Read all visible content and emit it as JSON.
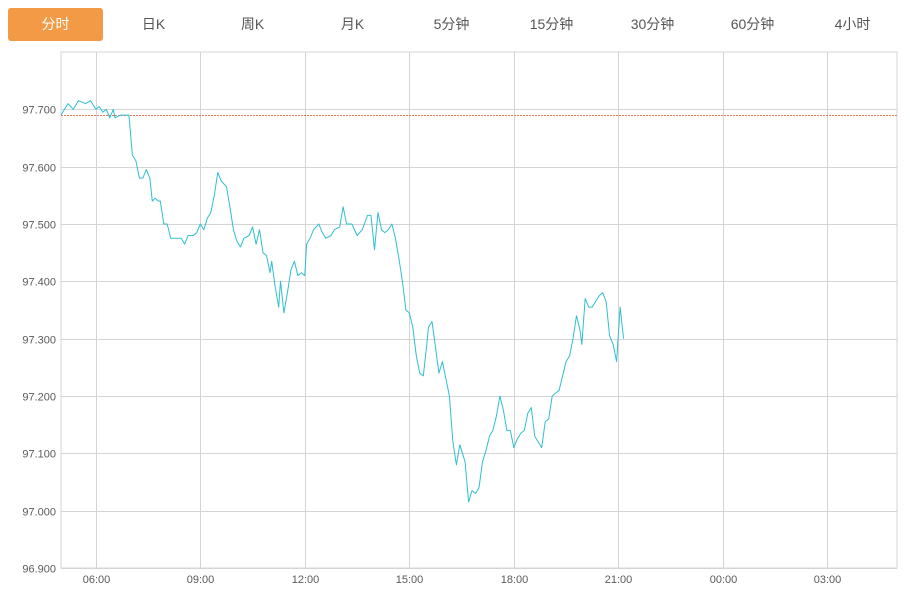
{
  "tabs": [
    {
      "label": "分时",
      "active": true
    },
    {
      "label": "日K",
      "active": false
    },
    {
      "label": "周K",
      "active": false
    },
    {
      "label": "月K",
      "active": false
    },
    {
      "label": "5分钟",
      "active": false
    },
    {
      "label": "15分钟",
      "active": false
    },
    {
      "label": "30分钟",
      "active": false
    },
    {
      "label": "60分钟",
      "active": false
    },
    {
      "label": "4小时",
      "active": false
    }
  ],
  "colors": {
    "accent": "#f39a47",
    "line": "#2fbfd0",
    "reference_line": "#e07a5f",
    "reference_label": "#d0021b",
    "grid": "#d4d4d4"
  },
  "chart_data": {
    "type": "line",
    "title": "",
    "xlabel": "",
    "ylabel": "",
    "ylim": [
      96.9,
      97.8
    ],
    "y_ticks": [
      "96.900",
      "97.000",
      "97.100",
      "97.200",
      "97.300",
      "97.400",
      "97.500",
      "97.600",
      "97.700"
    ],
    "x_range_hours": [
      5.0,
      29.0
    ],
    "x_ticks": [
      {
        "label": "06:00",
        "h": 6
      },
      {
        "label": "09:00",
        "h": 9
      },
      {
        "label": "12:00",
        "h": 12
      },
      {
        "label": "15:00",
        "h": 15
      },
      {
        "label": "18:00",
        "h": 18
      },
      {
        "label": "21:00",
        "h": 21
      },
      {
        "label": "00:00",
        "h": 24
      },
      {
        "label": "03:00",
        "h": 27
      }
    ],
    "reference_value": 97.69,
    "highlighted_tick": "97.700",
    "grid": true,
    "series": [
      {
        "points": [
          [
            5.0,
            97.69
          ],
          [
            5.1,
            97.7
          ],
          [
            5.2,
            97.71
          ],
          [
            5.35,
            97.7
          ],
          [
            5.5,
            97.715
          ],
          [
            5.7,
            97.71
          ],
          [
            5.85,
            97.715
          ],
          [
            6.0,
            97.7
          ],
          [
            6.1,
            97.705
          ],
          [
            6.2,
            97.695
          ],
          [
            6.3,
            97.7
          ],
          [
            6.4,
            97.685
          ],
          [
            6.5,
            97.7
          ],
          [
            6.55,
            97.685
          ],
          [
            6.7,
            97.69
          ],
          [
            6.85,
            97.69
          ],
          [
            6.95,
            97.69
          ],
          [
            7.05,
            97.62
          ],
          [
            7.15,
            97.61
          ],
          [
            7.25,
            97.58
          ],
          [
            7.35,
            97.58
          ],
          [
            7.45,
            97.595
          ],
          [
            7.55,
            97.58
          ],
          [
            7.62,
            97.54
          ],
          [
            7.7,
            97.545
          ],
          [
            7.8,
            97.54
          ],
          [
            7.85,
            97.54
          ],
          [
            7.95,
            97.5
          ],
          [
            8.05,
            97.5
          ],
          [
            8.15,
            97.475
          ],
          [
            8.3,
            97.475
          ],
          [
            8.45,
            97.475
          ],
          [
            8.55,
            97.465
          ],
          [
            8.65,
            97.48
          ],
          [
            8.8,
            97.48
          ],
          [
            8.9,
            97.485
          ],
          [
            9.0,
            97.5
          ],
          [
            9.1,
            97.49
          ],
          [
            9.2,
            97.51
          ],
          [
            9.3,
            97.52
          ],
          [
            9.4,
            97.55
          ],
          [
            9.5,
            97.59
          ],
          [
            9.6,
            97.575
          ],
          [
            9.75,
            97.565
          ],
          [
            9.85,
            97.53
          ],
          [
            9.95,
            97.49
          ],
          [
            10.05,
            97.47
          ],
          [
            10.15,
            97.46
          ],
          [
            10.25,
            97.475
          ],
          [
            10.4,
            97.48
          ],
          [
            10.5,
            97.495
          ],
          [
            10.6,
            97.465
          ],
          [
            10.7,
            97.49
          ],
          [
            10.8,
            97.45
          ],
          [
            10.9,
            97.445
          ],
          [
            11.0,
            97.415
          ],
          [
            11.05,
            97.435
          ],
          [
            11.15,
            97.39
          ],
          [
            11.25,
            97.355
          ],
          [
            11.3,
            97.4
          ],
          [
            11.4,
            97.345
          ],
          [
            11.5,
            97.38
          ],
          [
            11.6,
            97.42
          ],
          [
            11.7,
            97.435
          ],
          [
            11.8,
            97.41
          ],
          [
            11.9,
            97.415
          ],
          [
            12.0,
            97.41
          ],
          [
            12.05,
            97.465
          ],
          [
            12.15,
            97.475
          ],
          [
            12.25,
            97.49
          ],
          [
            12.4,
            97.5
          ],
          [
            12.5,
            97.485
          ],
          [
            12.6,
            97.475
          ],
          [
            12.75,
            97.48
          ],
          [
            12.85,
            97.49
          ],
          [
            13.0,
            97.495
          ],
          [
            13.1,
            97.53
          ],
          [
            13.2,
            97.5
          ],
          [
            13.35,
            97.5
          ],
          [
            13.5,
            97.48
          ],
          [
            13.65,
            97.49
          ],
          [
            13.8,
            97.515
          ],
          [
            13.9,
            97.515
          ],
          [
            14.0,
            97.455
          ],
          [
            14.1,
            97.52
          ],
          [
            14.2,
            97.49
          ],
          [
            14.3,
            97.485
          ],
          [
            14.4,
            97.49
          ],
          [
            14.5,
            97.5
          ],
          [
            14.6,
            97.475
          ],
          [
            14.7,
            97.44
          ],
          [
            14.8,
            97.4
          ],
          [
            14.9,
            97.35
          ],
          [
            15.0,
            97.345
          ],
          [
            15.1,
            97.32
          ],
          [
            15.2,
            97.27
          ],
          [
            15.3,
            97.24
          ],
          [
            15.4,
            97.235
          ],
          [
            15.5,
            97.29
          ],
          [
            15.55,
            97.32
          ],
          [
            15.65,
            97.33
          ],
          [
            15.75,
            97.285
          ],
          [
            15.85,
            97.24
          ],
          [
            15.95,
            97.26
          ],
          [
            16.05,
            97.23
          ],
          [
            16.15,
            97.2
          ],
          [
            16.25,
            97.12
          ],
          [
            16.35,
            97.08
          ],
          [
            16.45,
            97.115
          ],
          [
            16.6,
            97.085
          ],
          [
            16.7,
            97.015
          ],
          [
            16.8,
            97.035
          ],
          [
            16.9,
            97.03
          ],
          [
            17.0,
            97.04
          ],
          [
            17.1,
            97.085
          ],
          [
            17.2,
            97.105
          ],
          [
            17.3,
            97.13
          ],
          [
            17.4,
            97.14
          ],
          [
            17.5,
            97.165
          ],
          [
            17.6,
            97.2
          ],
          [
            17.7,
            97.175
          ],
          [
            17.8,
            97.14
          ],
          [
            17.9,
            97.14
          ],
          [
            18.0,
            97.11
          ],
          [
            18.1,
            97.125
          ],
          [
            18.2,
            97.135
          ],
          [
            18.3,
            97.14
          ],
          [
            18.4,
            97.17
          ],
          [
            18.5,
            97.18
          ],
          [
            18.6,
            97.13
          ],
          [
            18.7,
            97.12
          ],
          [
            18.8,
            97.11
          ],
          [
            18.9,
            97.155
          ],
          [
            19.0,
            97.16
          ],
          [
            19.1,
            97.2
          ],
          [
            19.2,
            97.205
          ],
          [
            19.3,
            97.21
          ],
          [
            19.4,
            97.235
          ],
          [
            19.5,
            97.26
          ],
          [
            19.6,
            97.27
          ],
          [
            19.7,
            97.3
          ],
          [
            19.8,
            97.34
          ],
          [
            19.9,
            97.315
          ],
          [
            19.95,
            97.29
          ],
          [
            20.05,
            97.37
          ],
          [
            20.15,
            97.355
          ],
          [
            20.25,
            97.355
          ],
          [
            20.35,
            97.365
          ],
          [
            20.45,
            97.375
          ],
          [
            20.55,
            97.38
          ],
          [
            20.65,
            97.365
          ],
          [
            20.75,
            97.305
          ],
          [
            20.85,
            97.29
          ],
          [
            20.95,
            97.26
          ],
          [
            21.05,
            97.355
          ],
          [
            21.15,
            97.3
          ]
        ]
      }
    ]
  }
}
